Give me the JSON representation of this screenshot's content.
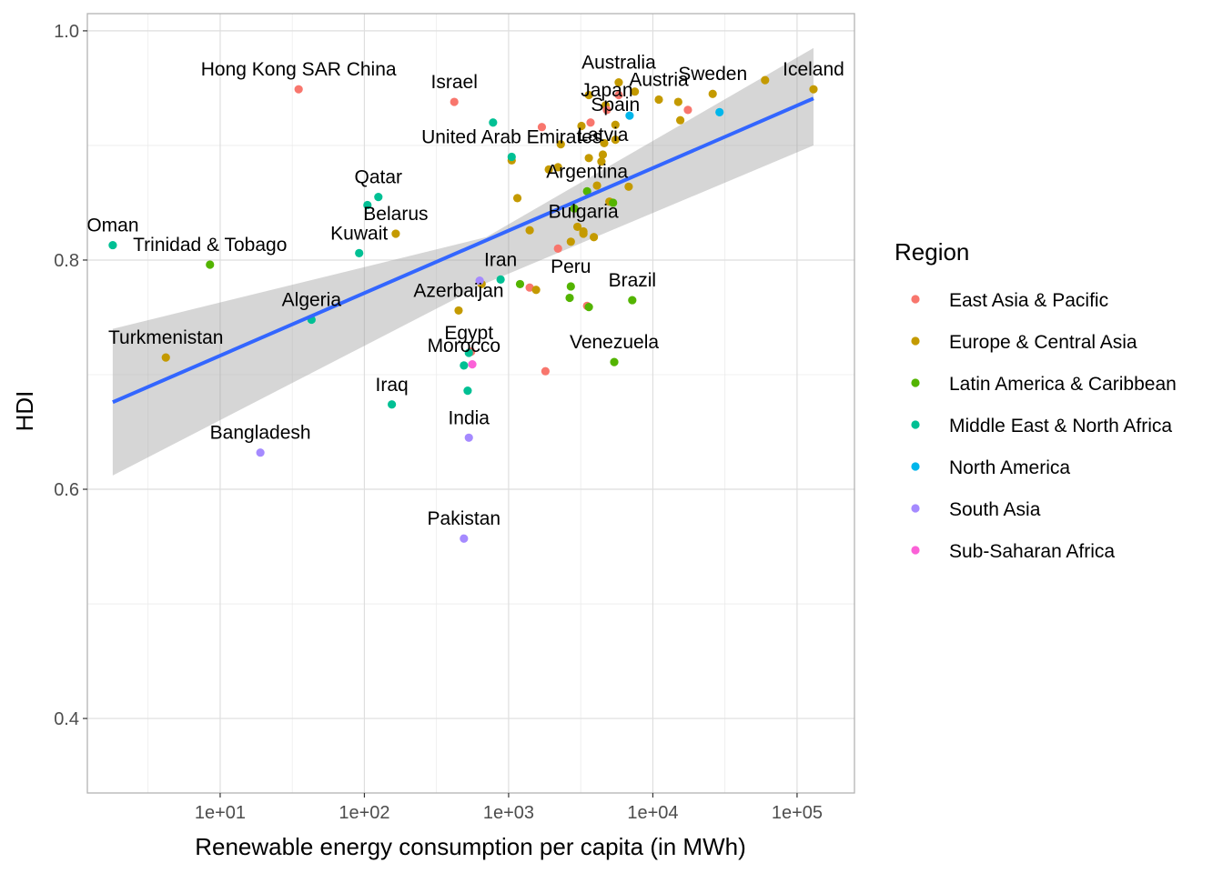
{
  "chart_data": {
    "type": "scatter",
    "xlabel": "Renewable energy consumption per capita (in MWh)",
    "ylabel": "HDI",
    "x_scale": "log10",
    "xlim": [
      1.2,
      250000
    ],
    "ylim": [
      0.335,
      1.015
    ],
    "x_ticks": [
      10,
      100,
      1000,
      10000,
      100000
    ],
    "x_tick_labels": [
      "1e+01",
      "1e+02",
      "1e+03",
      "1e+04",
      "1e+05"
    ],
    "y_ticks": [
      0.4,
      0.6,
      0.8,
      1.0
    ],
    "y_tick_labels": [
      "0.4",
      "0.6",
      "0.8",
      "1.0"
    ],
    "grid": true,
    "legend": {
      "title": "Region",
      "position": "right",
      "entries": [
        {
          "name": "East Asia & Pacific",
          "color": "#F8766D"
        },
        {
          "name": "Europe & Central Asia",
          "color": "#C49A00"
        },
        {
          "name": "Latin America & Caribbean",
          "color": "#53B400"
        },
        {
          "name": "Middle East & North Africa",
          "color": "#00C094"
        },
        {
          "name": "North America",
          "color": "#00B6EB"
        },
        {
          "name": "South Asia",
          "color": "#A58AFF"
        },
        {
          "name": "Sub-Saharan Africa",
          "color": "#FB61D7"
        }
      ]
    },
    "trend": {
      "type": "linear fit with confidence band",
      "color": "#3366FF",
      "band_color": "#999999",
      "line": [
        [
          1.8,
          0.676
        ],
        [
          130000,
          0.941
        ]
      ],
      "band_upper": [
        [
          1.8,
          0.74
        ],
        [
          700,
          0.82
        ],
        [
          130000,
          0.985
        ]
      ],
      "band_lower": [
        [
          1.8,
          0.612
        ],
        [
          700,
          0.78
        ],
        [
          130000,
          0.9
        ]
      ]
    },
    "labeled_points": [
      {
        "label": "Hong Kong SAR China",
        "x": 35,
        "y": 0.949,
        "region": "East Asia & Pacific"
      },
      {
        "label": "Israel",
        "x": 420,
        "y": 0.938,
        "region": "East Asia & Pacific"
      },
      {
        "label": "Australia",
        "x": 5800,
        "y": 0.955,
        "region": "Europe & Central Asia"
      },
      {
        "label": "Sweden",
        "x": 26000,
        "y": 0.945,
        "region": "Europe & Central Asia"
      },
      {
        "label": "Iceland",
        "x": 130000,
        "y": 0.949,
        "region": "Europe & Central Asia"
      },
      {
        "label": "Austria",
        "x": 11000,
        "y": 0.94,
        "region": "Europe & Central Asia"
      },
      {
        "label": "Japan",
        "x": 4800,
        "y": 0.931,
        "region": "East Asia & Pacific"
      },
      {
        "label": "Spain",
        "x": 5500,
        "y": 0.918,
        "region": "Europe & Central Asia"
      },
      {
        "label": "United Arab Emirates",
        "x": 1050,
        "y": 0.89,
        "region": "Middle East & North Africa"
      },
      {
        "label": "Latvia",
        "x": 4500,
        "y": 0.892,
        "region": "Europe & Central Asia"
      },
      {
        "label": "Qatar",
        "x": 125,
        "y": 0.855,
        "region": "Middle East & North Africa"
      },
      {
        "label": "Argentina",
        "x": 3500,
        "y": 0.86,
        "region": "Latin America & Caribbean"
      },
      {
        "label": "Belarus",
        "x": 165,
        "y": 0.823,
        "region": "Europe & Central Asia"
      },
      {
        "label": "Oman",
        "x": 1.8,
        "y": 0.813,
        "region": "Middle East & North Africa"
      },
      {
        "label": "Trinidad & Tobago",
        "x": 8.5,
        "y": 0.796,
        "region": "Latin America & Caribbean"
      },
      {
        "label": "Kuwait",
        "x": 92,
        "y": 0.806,
        "region": "Middle East & North Africa"
      },
      {
        "label": "Bulgaria",
        "x": 3300,
        "y": 0.825,
        "region": "Europe & Central Asia"
      },
      {
        "label": "Iran",
        "x": 880,
        "y": 0.783,
        "region": "Middle East & North Africa"
      },
      {
        "label": "Peru",
        "x": 2700,
        "y": 0.777,
        "region": "Latin America & Caribbean"
      },
      {
        "label": "Brazil",
        "x": 7200,
        "y": 0.765,
        "region": "Latin America & Caribbean"
      },
      {
        "label": "Azerbaijan",
        "x": 450,
        "y": 0.756,
        "region": "Europe & Central Asia"
      },
      {
        "label": "Algeria",
        "x": 43,
        "y": 0.748,
        "region": "Middle East & North Africa"
      },
      {
        "label": "Turkmenistan",
        "x": 4.2,
        "y": 0.715,
        "region": "Europe & Central Asia"
      },
      {
        "label": "Venezuela",
        "x": 5400,
        "y": 0.711,
        "region": "Latin America & Caribbean"
      },
      {
        "label": "Egypt",
        "x": 530,
        "y": 0.719,
        "region": "Middle East & North Africa"
      },
      {
        "label": "Morocco",
        "x": 490,
        "y": 0.708,
        "region": "Middle East & North Africa"
      },
      {
        "label": "Iraq",
        "x": 155,
        "y": 0.674,
        "region": "Middle East & North Africa"
      },
      {
        "label": "India",
        "x": 530,
        "y": 0.645,
        "region": "South Asia"
      },
      {
        "label": "Bangladesh",
        "x": 19,
        "y": 0.632,
        "region": "South Asia"
      },
      {
        "label": "Pakistan",
        "x": 490,
        "y": 0.557,
        "region": "South Asia"
      }
    ],
    "other_points": [
      {
        "x": 1700,
        "y": 0.916,
        "region": "East Asia & Pacific"
      },
      {
        "x": 3700,
        "y": 0.92,
        "region": "East Asia & Pacific"
      },
      {
        "x": 5800,
        "y": 0.944,
        "region": "East Asia & Pacific"
      },
      {
        "x": 17500,
        "y": 0.931,
        "region": "East Asia & Pacific"
      },
      {
        "x": 2200,
        "y": 0.81,
        "region": "East Asia & Pacific"
      },
      {
        "x": 1400,
        "y": 0.776,
        "region": "East Asia & Pacific"
      },
      {
        "x": 3500,
        "y": 0.76,
        "region": "East Asia & Pacific"
      },
      {
        "x": 1800,
        "y": 0.703,
        "region": "East Asia & Pacific"
      },
      {
        "x": 550,
        "y": 0.72,
        "region": "East Asia & Pacific"
      },
      {
        "x": 3600,
        "y": 0.944,
        "region": "Europe & Central Asia"
      },
      {
        "x": 4700,
        "y": 0.935,
        "region": "Europe & Central Asia"
      },
      {
        "x": 7500,
        "y": 0.947,
        "region": "Europe & Central Asia"
      },
      {
        "x": 15000,
        "y": 0.938,
        "region": "Europe & Central Asia"
      },
      {
        "x": 60000,
        "y": 0.957,
        "region": "Europe & Central Asia"
      },
      {
        "x": 15500,
        "y": 0.922,
        "region": "Europe & Central Asia"
      },
      {
        "x": 3200,
        "y": 0.917,
        "region": "Europe & Central Asia"
      },
      {
        "x": 5500,
        "y": 0.905,
        "region": "Europe & Central Asia"
      },
      {
        "x": 2300,
        "y": 0.901,
        "region": "Europe & Central Asia"
      },
      {
        "x": 4600,
        "y": 0.902,
        "region": "Europe & Central Asia"
      },
      {
        "x": 3600,
        "y": 0.889,
        "region": "Europe & Central Asia"
      },
      {
        "x": 1050,
        "y": 0.887,
        "region": "Europe & Central Asia"
      },
      {
        "x": 1900,
        "y": 0.879,
        "region": "Europe & Central Asia"
      },
      {
        "x": 2200,
        "y": 0.881,
        "region": "Europe & Central Asia"
      },
      {
        "x": 4400,
        "y": 0.886,
        "region": "Europe & Central Asia"
      },
      {
        "x": 6800,
        "y": 0.864,
        "region": "Europe & Central Asia"
      },
      {
        "x": 4100,
        "y": 0.865,
        "region": "Europe & Central Asia"
      },
      {
        "x": 1150,
        "y": 0.854,
        "region": "Europe & Central Asia"
      },
      {
        "x": 5000,
        "y": 0.851,
        "region": "Europe & Central Asia"
      },
      {
        "x": 1400,
        "y": 0.826,
        "region": "Europe & Central Asia"
      },
      {
        "x": 3000,
        "y": 0.829,
        "region": "Europe & Central Asia"
      },
      {
        "x": 3300,
        "y": 0.823,
        "region": "Europe & Central Asia"
      },
      {
        "x": 3900,
        "y": 0.82,
        "region": "Europe & Central Asia"
      },
      {
        "x": 2700,
        "y": 0.816,
        "region": "Europe & Central Asia"
      },
      {
        "x": 650,
        "y": 0.779,
        "region": "Europe & Central Asia"
      },
      {
        "x": 1550,
        "y": 0.774,
        "region": "Europe & Central Asia"
      },
      {
        "x": 5300,
        "y": 0.85,
        "region": "Latin America & Caribbean"
      },
      {
        "x": 2850,
        "y": 0.845,
        "region": "Latin America & Caribbean"
      },
      {
        "x": 1200,
        "y": 0.779,
        "region": "Latin America & Caribbean"
      },
      {
        "x": 2650,
        "y": 0.767,
        "region": "Latin America & Caribbean"
      },
      {
        "x": 3600,
        "y": 0.759,
        "region": "Latin America & Caribbean"
      },
      {
        "x": 780,
        "y": 0.92,
        "region": "Middle East & North Africa"
      },
      {
        "x": 105,
        "y": 0.848,
        "region": "Middle East & North Africa"
      },
      {
        "x": 520,
        "y": 0.686,
        "region": "Middle East & North Africa"
      },
      {
        "x": 6900,
        "y": 0.926,
        "region": "North America"
      },
      {
        "x": 29000,
        "y": 0.929,
        "region": "North America"
      },
      {
        "x": 630,
        "y": 0.782,
        "region": "South Asia"
      },
      {
        "x": 560,
        "y": 0.709,
        "region": "Sub-Saharan Africa"
      }
    ]
  }
}
